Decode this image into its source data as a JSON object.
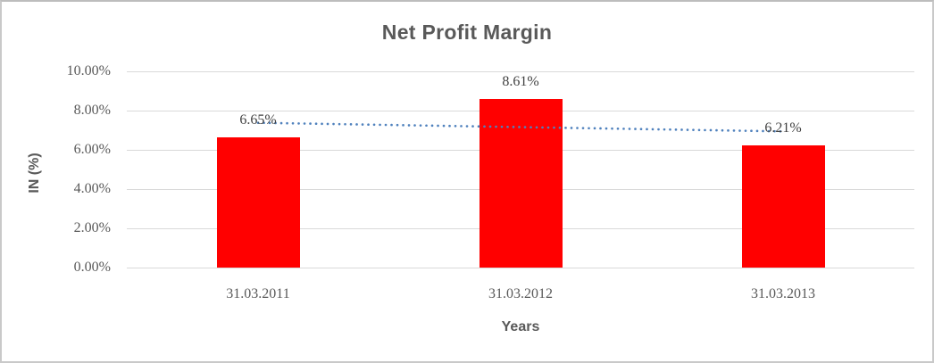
{
  "chart_data": {
    "type": "bar",
    "title": "Net Profit Margin",
    "xlabel": "Years",
    "ylabel": "IN (%)",
    "categories": [
      "31.03.2011",
      "31.03.2012",
      "31.03.2013"
    ],
    "values": [
      6.65,
      8.61,
      6.21
    ],
    "data_labels": [
      "6.65%",
      "8.61%",
      "6.21%"
    ],
    "ylim": [
      0,
      10
    ],
    "ytick_step": 2,
    "ytick_labels": [
      "0.00%",
      "2.00%",
      "4.00%",
      "6.00%",
      "8.00%",
      "10.00%"
    ],
    "grid": true,
    "legend": "none",
    "bar_color": "#ff0000",
    "gridline_color": "#d9d9d9",
    "text_color": "#595959",
    "trendline": {
      "type": "linear",
      "style": "dotted",
      "color": "#4f81bd",
      "values_at_first_and_last_category": [
        7.38,
        6.94
      ]
    }
  }
}
